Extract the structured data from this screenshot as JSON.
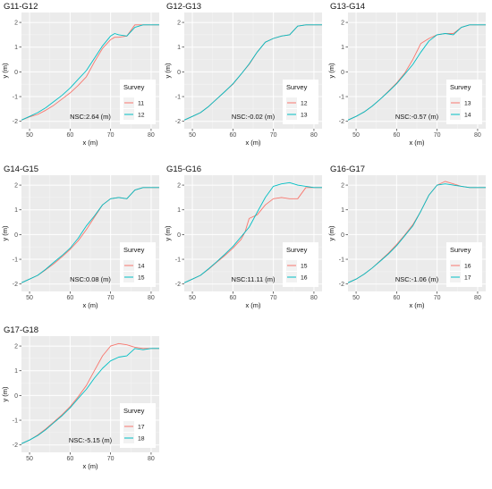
{
  "chart_data": [
    {
      "type": "line",
      "title": "G11-G12",
      "xlabel": "x (m)",
      "ylabel": "y (m)",
      "xlim": [
        48,
        82
      ],
      "ylim": [
        -2.3,
        2.4
      ],
      "xticks": [
        50,
        60,
        70,
        80
      ],
      "yticks": [
        -2,
        -1,
        0,
        1,
        2
      ],
      "grid": true,
      "legend": {
        "title": "Survey",
        "position": "bottom-right"
      },
      "annotation": "NSC:2.64 (m)",
      "series": [
        {
          "name": "11",
          "color": "#F8766D",
          "x": [
            48,
            50,
            52,
            54,
            56,
            58,
            60,
            62,
            64,
            66,
            68,
            70,
            71,
            72,
            74,
            76,
            78,
            80,
            82
          ],
          "y": [
            -1.95,
            -1.82,
            -1.72,
            -1.55,
            -1.35,
            -1.1,
            -0.85,
            -0.55,
            -0.2,
            0.4,
            0.95,
            1.3,
            1.4,
            1.4,
            1.45,
            1.9,
            1.9,
            1.9,
            1.9
          ]
        },
        {
          "name": "12",
          "color": "#00BFC4",
          "x": [
            48,
            50,
            52,
            54,
            56,
            58,
            60,
            62,
            64,
            66,
            68,
            70,
            71,
            72,
            74,
            76,
            78,
            80,
            82
          ],
          "y": [
            -1.95,
            -1.8,
            -1.65,
            -1.45,
            -1.2,
            -0.95,
            -0.65,
            -0.3,
            0.05,
            0.55,
            1.05,
            1.45,
            1.55,
            1.5,
            1.45,
            1.8,
            1.9,
            1.9,
            1.9
          ]
        }
      ]
    },
    {
      "type": "line",
      "title": "G12-G13",
      "xlabel": "x (m)",
      "ylabel": "y (m)",
      "xlim": [
        48,
        82
      ],
      "ylim": [
        -2.3,
        2.4
      ],
      "xticks": [
        50,
        60,
        70,
        80
      ],
      "yticks": [
        -2,
        -1,
        0,
        1,
        2
      ],
      "grid": true,
      "legend": {
        "title": "Survey",
        "position": "bottom-right"
      },
      "annotation": "NSC:-0.02 (m)",
      "series": [
        {
          "name": "12",
          "color": "#F8766D",
          "x": [
            48,
            50,
            52,
            54,
            56,
            58,
            60,
            62,
            64,
            66,
            68,
            70,
            72,
            74,
            76,
            78,
            80,
            82
          ],
          "y": [
            -1.95,
            -1.8,
            -1.65,
            -1.4,
            -1.1,
            -0.8,
            -0.5,
            -0.1,
            0.3,
            0.8,
            1.2,
            1.35,
            1.45,
            1.5,
            1.85,
            1.9,
            1.9,
            1.9
          ]
        },
        {
          "name": "13",
          "color": "#00BFC4",
          "x": [
            48,
            50,
            52,
            54,
            56,
            58,
            60,
            62,
            64,
            66,
            68,
            70,
            72,
            74,
            76,
            78,
            80,
            82
          ],
          "y": [
            -1.95,
            -1.8,
            -1.65,
            -1.4,
            -1.1,
            -0.8,
            -0.48,
            -0.1,
            0.32,
            0.8,
            1.2,
            1.35,
            1.45,
            1.5,
            1.85,
            1.9,
            1.9,
            1.9
          ]
        }
      ]
    },
    {
      "type": "line",
      "title": "G13-G14",
      "xlabel": "x (m)",
      "ylabel": "y (m)",
      "xlim": [
        48,
        82
      ],
      "ylim": [
        -2.3,
        2.4
      ],
      "xticks": [
        50,
        60,
        70,
        80
      ],
      "yticks": [
        -2,
        -1,
        0,
        1,
        2
      ],
      "grid": true,
      "legend": {
        "title": "Survey",
        "position": "bottom-right"
      },
      "annotation": "NSC:-0.57 (m)",
      "series": [
        {
          "name": "13",
          "color": "#F8766D",
          "x": [
            48,
            50,
            52,
            54,
            56,
            58,
            60,
            62,
            64,
            66,
            68,
            70,
            72,
            74,
            76,
            78,
            80,
            82
          ],
          "y": [
            -1.95,
            -1.8,
            -1.62,
            -1.38,
            -1.1,
            -0.78,
            -0.45,
            -0.05,
            0.5,
            1.15,
            1.35,
            1.5,
            1.55,
            1.55,
            1.8,
            1.9,
            1.9,
            1.9
          ]
        },
        {
          "name": "14",
          "color": "#00BFC4",
          "x": [
            48,
            50,
            52,
            54,
            56,
            58,
            60,
            62,
            64,
            66,
            68,
            70,
            72,
            74,
            76,
            78,
            80,
            82
          ],
          "y": [
            -1.95,
            -1.8,
            -1.62,
            -1.38,
            -1.1,
            -0.8,
            -0.48,
            -0.1,
            0.3,
            0.8,
            1.25,
            1.5,
            1.55,
            1.5,
            1.8,
            1.9,
            1.9,
            1.9
          ]
        }
      ]
    },
    {
      "type": "line",
      "title": "G14-G15",
      "xlabel": "x (m)",
      "ylabel": "y (m)",
      "xlim": [
        48,
        82
      ],
      "ylim": [
        -2.3,
        2.4
      ],
      "xticks": [
        50,
        60,
        70,
        80
      ],
      "yticks": [
        -2,
        -1,
        0,
        1,
        2
      ],
      "grid": true,
      "legend": {
        "title": "Survey",
        "position": "bottom-right"
      },
      "annotation": "NSC:0.08 (m)",
      "series": [
        {
          "name": "14",
          "color": "#F8766D",
          "x": [
            48,
            50,
            52,
            54,
            56,
            58,
            60,
            62,
            64,
            66,
            68,
            70,
            72,
            74,
            76,
            78,
            80,
            82
          ],
          "y": [
            -1.95,
            -1.8,
            -1.65,
            -1.42,
            -1.18,
            -0.9,
            -0.6,
            -0.25,
            0.2,
            0.7,
            1.2,
            1.45,
            1.5,
            1.45,
            1.8,
            1.9,
            1.9,
            1.9
          ]
        },
        {
          "name": "15",
          "color": "#00BFC4",
          "x": [
            48,
            50,
            52,
            54,
            56,
            58,
            60,
            62,
            64,
            66,
            68,
            70,
            72,
            74,
            76,
            78,
            80,
            82
          ],
          "y": [
            -1.95,
            -1.8,
            -1.65,
            -1.4,
            -1.12,
            -0.85,
            -0.55,
            -0.15,
            0.35,
            0.75,
            1.2,
            1.45,
            1.5,
            1.45,
            1.8,
            1.9,
            1.9,
            1.9
          ]
        }
      ]
    },
    {
      "type": "line",
      "title": "G15-G16",
      "xlabel": "x (m)",
      "ylabel": "y (m)",
      "xlim": [
        48,
        82
      ],
      "ylim": [
        -2.3,
        2.4
      ],
      "xticks": [
        50,
        60,
        70,
        80
      ],
      "yticks": [
        -2,
        -1,
        0,
        1,
        2
      ],
      "grid": true,
      "legend": {
        "title": "Survey",
        "position": "bottom-right"
      },
      "annotation": "NSC:11.11 (m)",
      "series": [
        {
          "name": "15",
          "color": "#F8766D",
          "x": [
            48,
            50,
            52,
            54,
            56,
            58,
            60,
            62,
            63,
            64,
            66,
            68,
            70,
            72,
            74,
            76,
            78,
            80,
            82
          ],
          "y": [
            -1.95,
            -1.8,
            -1.65,
            -1.4,
            -1.12,
            -0.85,
            -0.55,
            -0.2,
            0.1,
            0.65,
            0.8,
            1.2,
            1.45,
            1.5,
            1.45,
            1.45,
            1.9,
            1.9,
            1.9
          ]
        },
        {
          "name": "16",
          "color": "#00BFC4",
          "x": [
            48,
            50,
            52,
            54,
            56,
            58,
            60,
            62,
            64,
            66,
            68,
            70,
            72,
            74,
            76,
            78,
            80,
            82
          ],
          "y": [
            -1.95,
            -1.8,
            -1.65,
            -1.38,
            -1.1,
            -0.8,
            -0.48,
            -0.1,
            0.3,
            0.9,
            1.5,
            1.95,
            2.05,
            2.1,
            2.0,
            1.95,
            1.9,
            1.9
          ]
        }
      ]
    },
    {
      "type": "line",
      "title": "G16-G17",
      "xlabel": "x (m)",
      "ylabel": "y (m)",
      "xlim": [
        48,
        82
      ],
      "ylim": [
        -2.3,
        2.4
      ],
      "xticks": [
        50,
        60,
        70,
        80
      ],
      "yticks": [
        -2,
        -1,
        0,
        1,
        2
      ],
      "grid": true,
      "legend": {
        "title": "Survey",
        "position": "bottom-right"
      },
      "annotation": "NSC:-1.06 (m)",
      "series": [
        {
          "name": "16",
          "color": "#F8766D",
          "x": [
            48,
            50,
            52,
            54,
            56,
            58,
            60,
            62,
            64,
            66,
            68,
            70,
            72,
            74,
            76,
            78,
            80,
            82
          ],
          "y": [
            -1.95,
            -1.8,
            -1.6,
            -1.35,
            -1.05,
            -0.75,
            -0.4,
            -0.02,
            0.4,
            0.95,
            1.6,
            2.0,
            2.15,
            2.05,
            1.95,
            1.9,
            1.9,
            1.9
          ]
        },
        {
          "name": "17",
          "color": "#00BFC4",
          "x": [
            48,
            50,
            52,
            54,
            56,
            58,
            60,
            62,
            64,
            66,
            68,
            70,
            72,
            74,
            76,
            78,
            80,
            82
          ],
          "y": [
            -1.95,
            -1.8,
            -1.6,
            -1.35,
            -1.07,
            -0.78,
            -0.45,
            -0.05,
            0.35,
            0.95,
            1.6,
            2.0,
            2.05,
            2.0,
            1.95,
            1.9,
            1.9,
            1.9
          ]
        }
      ]
    },
    {
      "type": "line",
      "title": "G17-G18",
      "xlabel": "x (m)",
      "ylabel": "y (m)",
      "xlim": [
        48,
        82
      ],
      "ylim": [
        -2.3,
        2.4
      ],
      "xticks": [
        50,
        60,
        70,
        80
      ],
      "yticks": [
        -2,
        -1,
        0,
        1,
        2
      ],
      "grid": true,
      "legend": {
        "title": "Survey",
        "position": "bottom-right"
      },
      "annotation": "NSC:-5.15 (m)",
      "series": [
        {
          "name": "17",
          "color": "#F8766D",
          "x": [
            48,
            50,
            52,
            54,
            56,
            58,
            60,
            62,
            64,
            66,
            68,
            70,
            72,
            74,
            76,
            78,
            80,
            82
          ],
          "y": [
            -1.95,
            -1.8,
            -1.6,
            -1.35,
            -1.07,
            -0.78,
            -0.45,
            -0.05,
            0.4,
            1.0,
            1.6,
            2.0,
            2.1,
            2.05,
            1.95,
            1.9,
            1.9,
            1.9
          ]
        },
        {
          "name": "18",
          "color": "#00BFC4",
          "x": [
            48,
            50,
            52,
            54,
            56,
            58,
            60,
            62,
            64,
            66,
            68,
            70,
            72,
            74,
            76,
            78,
            80,
            82
          ],
          "y": [
            -1.95,
            -1.8,
            -1.62,
            -1.38,
            -1.1,
            -0.82,
            -0.5,
            -0.12,
            0.25,
            0.7,
            1.1,
            1.4,
            1.55,
            1.6,
            1.9,
            1.85,
            1.9,
            1.9
          ]
        }
      ]
    }
  ]
}
